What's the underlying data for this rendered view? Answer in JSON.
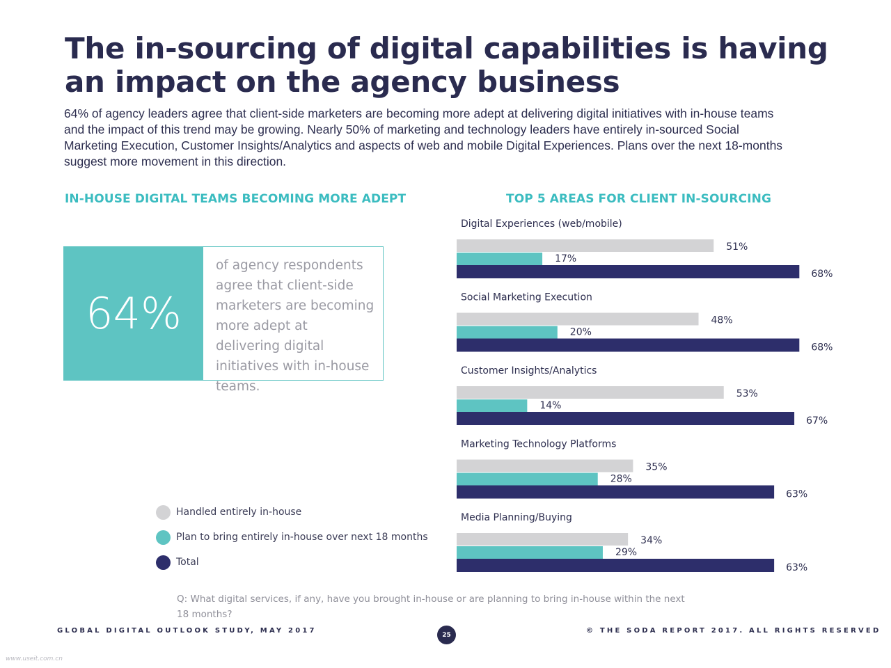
{
  "header": {
    "title_line1": "The in-sourcing of digital capabilities is having",
    "title_line2": "an impact on the agency business",
    "intro": "64% of agency leaders agree that client-side marketers are becoming more adept at delivering digital initiatives with in-house teams and the impact of this trend may be growing. Nearly 50% of marketing and technology leaders have entirely in-sourced Social Marketing Execution, Customer Insights/Analytics and aspects of web and mobile Digital Experiences. Plans over the next 18-months suggest more movement in this direction."
  },
  "left_panel": {
    "heading": "IN-HOUSE DIGITAL TEAMS BECOMING MORE ADEPT",
    "stat_value": "64%",
    "stat_text": "of agency respondents agree that client-side marketers are becoming more adept at delivering digital initiatives with in-house teams.",
    "stat_color": "#5ec4c2"
  },
  "legend": {
    "items": [
      {
        "label": "Handled entirely in-house",
        "color": "#d3d3d5"
      },
      {
        "label": "Plan to bring entirely in-house over next 18 months",
        "color": "#5ec4c2"
      },
      {
        "label": "Total",
        "color": "#2d2e6b"
      }
    ]
  },
  "chart_data": {
    "type": "bar",
    "orientation": "horizontal",
    "title": "TOP 5 AREAS FOR CLIENT IN-SOURCING",
    "categories": [
      "Digital Experiences (web/mobile)",
      "Social Marketing Execution",
      "Customer Insights/Analytics",
      "Marketing Technology Platforms",
      "Media Planning/Buying"
    ],
    "series": [
      {
        "name": "Handled entirely in-house",
        "color": "#d3d3d5",
        "values": [
          51,
          48,
          53,
          35,
          34
        ]
      },
      {
        "name": "Plan to bring entirely in-house over next 18 months",
        "color": "#5ec4c2",
        "values": [
          17,
          20,
          14,
          28,
          29
        ]
      },
      {
        "name": "Total",
        "color": "#2d2e6b",
        "values": [
          68,
          68,
          67,
          63,
          63
        ]
      }
    ],
    "value_suffix": "%",
    "xlim": [
      0,
      100
    ],
    "grid": false,
    "legend_position": "bottom-left"
  },
  "footer": {
    "question": "Q: What digital services, if any, have you brought in-house or are planning to bring in-house within the next 18 months?",
    "left": "GLOBAL DIGITAL OUTLOOK STUDY, MAY 2017",
    "page_number": "25",
    "right": "© THE SODA REPORT 2017. ALL RIGHTS RESERVED",
    "watermark": "www.useit.com.cn"
  }
}
